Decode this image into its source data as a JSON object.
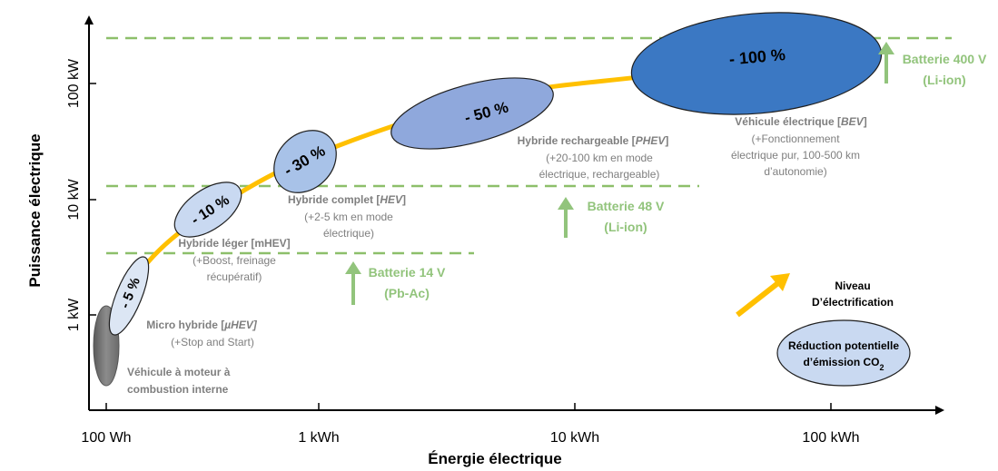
{
  "axes": {
    "y_title": "Puissance électrique",
    "x_title": "Énergie électrique",
    "y_ticks": [
      "100 kW",
      "10 kW",
      "1 kW"
    ],
    "x_ticks": [
      "100 Wh",
      "1 kWh",
      "10 kWh",
      "100 kWh"
    ]
  },
  "stages": [
    {
      "pct": "",
      "title": "Véhicule à moteur à",
      "title2": "combustion interne",
      "lines": []
    },
    {
      "pct": "- 5 %",
      "title": "Micro hybride [",
      "title_em": "µHEV]",
      "lines": [
        "(+Stop and Start)"
      ]
    },
    {
      "pct": "- 10 %",
      "title": "Hybride léger [mHEV]",
      "lines": [
        "(+Boost, freinage",
        "récupératif)"
      ]
    },
    {
      "pct": "- 30 %",
      "title": "Hybride complet [",
      "title_em": "HEV",
      "title_end": "]",
      "lines": [
        "(+2-5 km en mode",
        "électrique)"
      ]
    },
    {
      "pct": "- 50 %",
      "title": "Hybride rechargeable [",
      "title_em": "PHEV",
      "title_end": "]",
      "lines": [
        "(+20-100 km en mode",
        "électrique, rechargeable)"
      ]
    },
    {
      "pct": "- 100 %",
      "title": "Véhicule électrique [",
      "title_em": "BEV",
      "title_end": "]",
      "lines": [
        "(+Fonctionnement",
        "électrique pur, 100-500 km",
        "d’autonomie)"
      ]
    }
  ],
  "batteries": [
    {
      "line1": "Batterie 14 V",
      "line2": "(Pb-Ac)"
    },
    {
      "line1": "Batterie 48 V",
      "line2": "(Li-ion)"
    },
    {
      "line1": "Batterie 400 V",
      "line2": "(Li-ion)"
    }
  ],
  "legend": {
    "arrow_label_1": "Niveau",
    "arrow_label_2": "D’électrification",
    "ellipse_label_1": "Réduction potentielle",
    "ellipse_label_2": "d’émission CO",
    "ellipse_sub": "2"
  },
  "colors": {
    "curve": "#FFC000",
    "battery_green": "#92C47C",
    "dash_green": "#8DBF6A",
    "ellipse_dark": "#3B78C3",
    "ellipse_mid": "#8FA8DC",
    "ellipse_light": "#C9D9F1",
    "ellipse_lightest": "#DCE6F4",
    "grey_text": "#7F7F7F"
  }
}
